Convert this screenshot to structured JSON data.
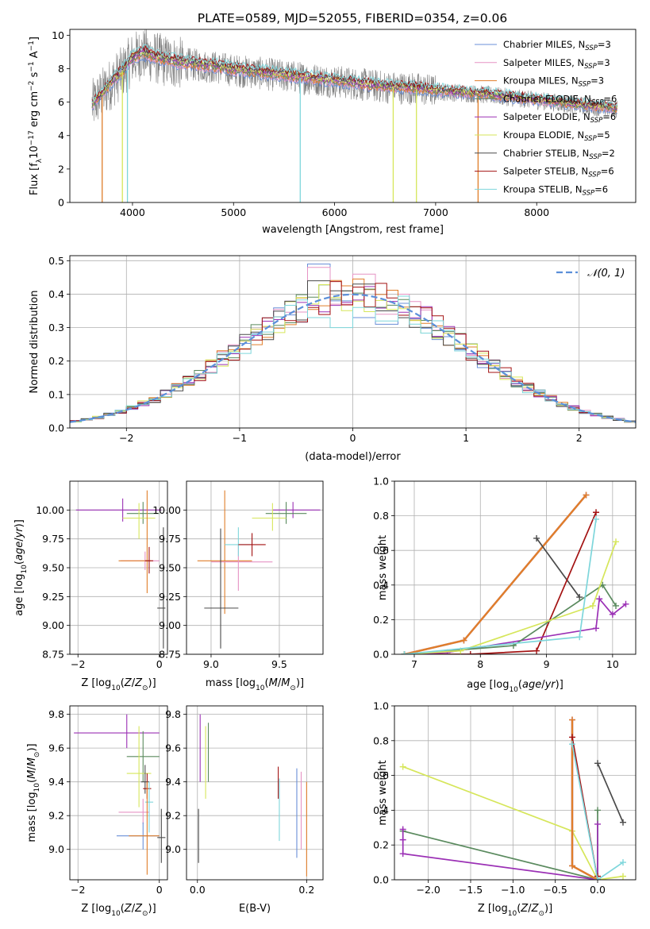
{
  "figure": {
    "title": "PLATE=0589, MJD=52055, FIBERID=0354, z=0.06"
  },
  "colors": {
    "Chabrier MILES": "#6a8fd8",
    "Salpeter MILES": "#e693c4",
    "Kroupa MILES": "#e07e2a",
    "Chabrier ELODIE": "#5a8a5e",
    "Salpeter ELODIE": "#9b30b5",
    "Kroupa ELODIE": "#d6e65a",
    "Chabrier STELIB": "#4a4a4a",
    "Salpeter STELIB": "#a31212",
    "Kroupa STELIB": "#7ed6db",
    "data": "#7f7f7f",
    "normal": "#5b8fd9"
  },
  "chart_data": [
    {
      "id": "spectrum",
      "type": "line",
      "xlabel": "wavelength [Angstrom, rest frame]",
      "ylabel": "Flux [f_λ 10^-17 erg cm^-2 s^-1 A^-1]",
      "xlim": [
        3380,
        8980
      ],
      "ylim": [
        0,
        10.35
      ],
      "xticks": [
        4000,
        5000,
        6000,
        7000,
        8000
      ],
      "yticks": [
        0,
        2,
        4,
        6,
        8,
        10
      ],
      "grid": false,
      "legend_position": "right",
      "data_anchor": {
        "x": [
          3600,
          3700,
          3800,
          3900,
          4000,
          4100,
          4300,
          4500,
          4800,
          5000,
          5300,
          5600,
          5900,
          6200,
          6500,
          6800,
          7100,
          7400,
          7700,
          8000,
          8300,
          8600,
          8800
        ],
        "y": [
          5.8,
          6.5,
          7.2,
          7.8,
          8.6,
          8.9,
          8.5,
          8.3,
          8.1,
          7.9,
          7.7,
          7.5,
          7.3,
          7.1,
          6.9,
          6.8,
          6.6,
          6.5,
          6.3,
          6.1,
          5.9,
          5.7,
          5.6
        ]
      },
      "dips": [
        {
          "series": "Kroupa MILES",
          "x": 3700
        },
        {
          "series": "Kroupa ELODIE",
          "x": 3900
        },
        {
          "series": "Kroupa STELIB",
          "x": 3950
        },
        {
          "series": "Kroupa STELIB",
          "x": 5660
        },
        {
          "series": "Kroupa ELODIE",
          "x": 6580
        },
        {
          "series": "Kroupa ELODIE",
          "x": 6810
        },
        {
          "series": "Kroupa MILES",
          "x": 7420
        }
      ],
      "legend": [
        {
          "name": "Chabrier MILES, N_SSP=3",
          "label": "Chabrier MILES, N",
          "sub": "SSP",
          "tail": "=3",
          "color_key": "Chabrier MILES"
        },
        {
          "name": "Salpeter MILES, N_SSP=3",
          "label": "Salpeter MILES, N",
          "sub": "SSP",
          "tail": "=3",
          "color_key": "Salpeter MILES"
        },
        {
          "name": "Kroupa MILES, N_SSP=3",
          "label": "Kroupa MILES, N",
          "sub": "SSP",
          "tail": "=3",
          "color_key": "Kroupa MILES"
        },
        {
          "name": "Chabrier ELODIE, N_SSP=6",
          "label": "Chabrier ELODIE, N",
          "sub": "SSP",
          "tail": "=6",
          "color_key": "Chabrier ELODIE"
        },
        {
          "name": "Salpeter ELODIE, N_SSP=6",
          "label": "Salpeter ELODIE, N",
          "sub": "SSP",
          "tail": "=6",
          "color_key": "Salpeter ELODIE"
        },
        {
          "name": "Kroupa ELODIE, N_SSP=5",
          "label": "Kroupa ELODIE, N",
          "sub": "SSP",
          "tail": "=5",
          "color_key": "Kroupa ELODIE"
        },
        {
          "name": "Chabrier STELIB, N_SSP=2",
          "label": "Chabrier STELIB, N",
          "sub": "SSP",
          "tail": "=2",
          "color_key": "Chabrier STELIB"
        },
        {
          "name": "Salpeter STELIB, N_SSP=6",
          "label": "Salpeter STELIB, N",
          "sub": "SSP",
          "tail": "=6",
          "color_key": "Salpeter STELIB"
        },
        {
          "name": "Kroupa STELIB, N_SSP=6",
          "label": "Kroupa STELIB, N",
          "sub": "SSP",
          "tail": "=6",
          "color_key": "Kroupa STELIB"
        }
      ]
    },
    {
      "id": "residuals",
      "type": "bar",
      "xlabel": "(data-model)/error",
      "ylabel": "Normed distribution",
      "xlim": [
        -2.5,
        2.5
      ],
      "ylim": [
        0,
        0.515
      ],
      "xticks": [
        -2,
        -1,
        0,
        1,
        2
      ],
      "yticks": [
        0.0,
        0.1,
        0.2,
        0.3,
        0.4,
        0.5
      ],
      "grid": true,
      "legend_position": "top-right",
      "bin_width": 0.1,
      "normal_curve": {
        "name": "N(0,1)",
        "mean": 0,
        "sigma": 1
      },
      "series": [
        {
          "name": "Chabrier MILES",
          "values": [
            0.49,
            0.38,
            0.33,
            0.31
          ]
        },
        {
          "name": "Chabrier STELIB",
          "values": [
            0.44,
            0.41,
            0.43,
            0.35
          ]
        },
        {
          "name": "Salpeter MILES",
          "values": [
            0.48,
            0.37,
            0.46,
            0.34
          ]
        },
        {
          "name": "Kroupa STELIB",
          "values": [
            0.33,
            0.3,
            0.36,
            0.32
          ]
        }
      ]
    },
    {
      "id": "age_vs_Z",
      "type": "scatter",
      "xlabel": "Z [log10(Z/Z⊙)]",
      "ylabel": "age [log10(age/yr)]",
      "xlim": [
        -2.2,
        0.2
      ],
      "ylim": [
        8.75,
        10.25
      ],
      "xticks": [
        -2,
        0
      ],
      "yticks": [
        8.75,
        9.0,
        9.25,
        9.5,
        9.75,
        10.0
      ],
      "grid": true,
      "points": [
        {
          "series": "Salpeter ELODIE",
          "x": -0.9,
          "xmin": -2.05,
          "xmax": 0.05,
          "y": 10.0,
          "ymin": 9.9,
          "ymax": 10.1
        },
        {
          "series": "Chabrier ELODIE",
          "x": -0.4,
          "xmin": -0.8,
          "xmax": 0.0,
          "y": 9.97,
          "ymin": 9.88,
          "ymax": 10.07
        },
        {
          "series": "Kroupa ELODIE",
          "x": -0.5,
          "xmin": -0.9,
          "xmax": -0.1,
          "y": 9.93,
          "ymin": 9.75,
          "ymax": 10.06
        },
        {
          "series": "Salpeter MILES",
          "x": -0.35,
          "xmin": -0.95,
          "xmax": 0.0,
          "y": 9.56,
          "ymin": 9.48,
          "ymax": 9.64
        },
        {
          "series": "Kroupa MILES",
          "x": -0.3,
          "xmin": -1.0,
          "xmax": -0.2,
          "y": 9.56,
          "ymin": 9.28,
          "ymax": 10.17
        },
        {
          "series": "Salpeter STELIB",
          "x": -0.25,
          "xmin": -0.35,
          "xmax": -0.15,
          "y": 9.56,
          "ymin": 9.45,
          "ymax": 9.68
        },
        {
          "series": "Chabrier STELIB",
          "x": 0.1,
          "xmin": -0.05,
          "xmax": 0.15,
          "y": 9.15,
          "ymin": 8.8,
          "ymax": 9.85
        }
      ]
    },
    {
      "id": "age_vs_mass",
      "type": "scatter",
      "xlabel": "mass [log10(M/M⊙)]",
      "ylabel": "",
      "xlim": [
        8.82,
        9.82
      ],
      "ylim": [
        8.75,
        10.25
      ],
      "xticks": [
        9.0,
        9.5
      ],
      "yticks": [
        8.75,
        9.0,
        9.25,
        9.5,
        9.75,
        10.0
      ],
      "grid": true,
      "points": [
        {
          "series": "Salpeter ELODIE",
          "x": 9.6,
          "xmin": 9.45,
          "xmax": 9.8,
          "y": 10.0,
          "ymin": 9.93,
          "ymax": 10.07
        },
        {
          "series": "Chabrier ELODIE",
          "x": 9.55,
          "xmin": 9.4,
          "xmax": 9.7,
          "y": 9.97,
          "ymin": 9.88,
          "ymax": 10.07
        },
        {
          "series": "Kroupa ELODIE",
          "x": 9.45,
          "xmin": 9.3,
          "xmax": 9.55,
          "y": 9.93,
          "ymin": 9.82,
          "ymax": 10.06
        },
        {
          "series": "Kroupa MILES",
          "x": 9.1,
          "xmin": 8.9,
          "xmax": 9.3,
          "y": 9.56,
          "ymin": 9.1,
          "ymax": 10.17
        },
        {
          "series": "Salpeter MILES",
          "x": 9.2,
          "xmin": 9.0,
          "xmax": 9.45,
          "y": 9.55,
          "ymin": 9.3,
          "ymax": 9.7
        },
        {
          "series": "Kroupa STELIB",
          "x": 9.2,
          "xmin": 9.1,
          "xmax": 9.3,
          "y": 9.7,
          "ymin": 9.6,
          "ymax": 9.85
        },
        {
          "series": "Salpeter STELIB",
          "x": 9.3,
          "xmin": 9.2,
          "xmax": 9.4,
          "y": 9.7,
          "ymin": 9.6,
          "ymax": 9.8
        },
        {
          "series": "Chabrier STELIB",
          "x": 9.07,
          "xmin": 8.95,
          "xmax": 9.2,
          "y": 9.15,
          "ymin": 8.8,
          "ymax": 9.84
        }
      ]
    },
    {
      "id": "weight_vs_age",
      "type": "line",
      "xlabel": "age [log10(age/yr)]",
      "ylabel": "mass weight",
      "xlim": [
        6.7,
        10.35
      ],
      "ylim": [
        0,
        1.0
      ],
      "xticks": [
        7,
        8,
        9,
        10
      ],
      "yticks": [
        0.0,
        0.2,
        0.4,
        0.6,
        0.8,
        1.0
      ],
      "grid": true,
      "series": [
        {
          "name": "Chabrier MILES",
          "x": [
            6.85,
            7.75,
            9.6
          ],
          "y": [
            0.0,
            0.08,
            0.92
          ]
        },
        {
          "name": "Salpeter MILES",
          "x": [
            6.85,
            7.75,
            9.6
          ],
          "y": [
            0.0,
            0.08,
            0.92
          ]
        },
        {
          "name": "Kroupa MILES",
          "x": [
            6.85,
            7.75,
            9.6
          ],
          "y": [
            0.0,
            0.08,
            0.92
          ]
        },
        {
          "name": "Chabrier STELIB",
          "x": [
            8.85,
            9.5
          ],
          "y": [
            0.67,
            0.33
          ]
        },
        {
          "name": "Salpeter STELIB",
          "x": [
            6.85,
            7.85,
            8.85,
            9.75
          ],
          "y": [
            0.0,
            0.0,
            0.02,
            0.82
          ]
        },
        {
          "name": "Salpeter ELODIE",
          "x": [
            6.85,
            7.5,
            9.75,
            9.8,
            10.0,
            10.2
          ],
          "y": [
            0.0,
            0.01,
            0.15,
            0.32,
            0.23,
            0.29
          ]
        },
        {
          "name": "Chabrier ELODIE",
          "x": [
            6.85,
            8.5,
            9.85,
            10.05
          ],
          "y": [
            0.0,
            0.05,
            0.4,
            0.28
          ]
        },
        {
          "name": "Kroupa ELODIE",
          "x": [
            6.85,
            7.7,
            9.7,
            10.05
          ],
          "y": [
            0.0,
            0.02,
            0.28,
            0.65
          ]
        },
        {
          "name": "Kroupa STELIB",
          "x": [
            6.85,
            9.5,
            9.75
          ],
          "y": [
            0.0,
            0.1,
            0.78
          ]
        }
      ]
    },
    {
      "id": "mass_vs_Z",
      "type": "scatter",
      "xlabel": "Z [log10(Z/Z⊙)]",
      "ylabel": "mass [log10(M/M⊙)]",
      "xlim": [
        -2.2,
        0.2
      ],
      "ylim": [
        8.82,
        9.85
      ],
      "xticks": [
        -2,
        0
      ],
      "yticks": [
        9.0,
        9.2,
        9.4,
        9.6,
        9.8
      ],
      "grid": true,
      "points": [
        {
          "series": "Salpeter ELODIE",
          "x": -0.8,
          "xmin": -2.1,
          "xmax": 0.0,
          "y": 9.69,
          "ymin": 9.6,
          "ymax": 9.8
        },
        {
          "series": "Chabrier ELODIE",
          "x": -0.4,
          "xmin": -0.8,
          "xmax": 0.0,
          "y": 9.55,
          "ymin": 9.4,
          "ymax": 9.7
        },
        {
          "series": "Kroupa ELODIE",
          "x": -0.5,
          "xmin": -0.8,
          "xmax": -0.2,
          "y": 9.45,
          "ymin": 9.25,
          "ymax": 9.73
        },
        {
          "series": "Chabrier STELIB",
          "x": -0.35,
          "xmin": -0.45,
          "xmax": -0.25,
          "y": 9.4,
          "ymin": 9.33,
          "ymax": 9.5
        },
        {
          "series": "Salpeter STELIB",
          "x": -0.3,
          "xmin": -0.4,
          "xmax": -0.2,
          "y": 9.36,
          "ymin": 9.3,
          "ymax": 9.45
        },
        {
          "series": "Kroupa STELIB",
          "x": -0.25,
          "xmin": -0.35,
          "xmax": -0.15,
          "y": 9.28,
          "ymin": 9.1,
          "ymax": 9.4
        },
        {
          "series": "Salpeter MILES",
          "x": -0.4,
          "xmin": -1.0,
          "xmax": -0.25,
          "y": 9.22,
          "ymin": 9.15,
          "ymax": 9.3
        },
        {
          "series": "Chabrier MILES",
          "x": -0.4,
          "xmin": -1.05,
          "xmax": 0.0,
          "y": 9.08,
          "ymin": 9.0,
          "ymax": 9.16
        },
        {
          "series": "Kroupa MILES",
          "x": -0.3,
          "xmin": -0.75,
          "xmax": 0.0,
          "y": 9.08,
          "ymin": 8.85,
          "ymax": 9.4
        },
        {
          "series": "Chabrier STELIB",
          "x": 0.05,
          "xmin": -0.05,
          "xmax": 0.15,
          "y": 9.07,
          "ymin": 8.92,
          "ymax": 9.24
        }
      ]
    },
    {
      "id": "mass_vs_EBV",
      "type": "scatter",
      "xlabel": "E(B-V)",
      "ylabel": "",
      "xlim": [
        -0.02,
        0.23
      ],
      "ylim": [
        8.82,
        9.85
      ],
      "xticks": [
        0.0,
        0.2
      ],
      "yticks": [
        9.0,
        9.2,
        9.4,
        9.6,
        9.8
      ],
      "grid": true,
      "points": [
        {
          "series": "Salpeter ELODIE",
          "x": 0.005,
          "y": 9.6,
          "ymin": 9.4,
          "ymax": 9.8
        },
        {
          "series": "Kroupa ELODIE",
          "x": 0.015,
          "y": 9.55,
          "ymin": 9.3,
          "ymax": 9.73
        },
        {
          "series": "Chabrier ELODIE",
          "x": 0.02,
          "y": 9.55,
          "ymin": 9.4,
          "ymax": 9.75
        },
        {
          "series": "Chabrier STELIB",
          "x": 0.002,
          "y": 9.08,
          "ymin": 8.92,
          "ymax": 9.24
        },
        {
          "series": "Salpeter STELIB",
          "x": 0.148,
          "y": 9.4,
          "ymin": 9.3,
          "ymax": 9.49
        },
        {
          "series": "Kroupa STELIB",
          "x": 0.15,
          "y": 9.2,
          "ymin": 9.05,
          "ymax": 9.42
        },
        {
          "series": "Chabrier MILES",
          "x": 0.182,
          "y": 9.2,
          "ymin": 8.95,
          "ymax": 9.48
        },
        {
          "series": "Salpeter MILES",
          "x": 0.19,
          "y": 9.2,
          "ymin": 9.0,
          "ymax": 9.46
        },
        {
          "series": "Kroupa MILES",
          "x": 0.2,
          "y": 9.15,
          "ymin": 8.84,
          "ymax": 9.4
        }
      ]
    },
    {
      "id": "weight_vs_Z",
      "type": "line",
      "xlabel": "Z [log10(Z/Z⊙)]",
      "ylabel": "mass weight",
      "xlim": [
        -2.4,
        0.45
      ],
      "ylim": [
        0,
        1.0
      ],
      "xticks": [
        -2.0,
        -1.5,
        -1.0,
        -0.5,
        0.0
      ],
      "yticks": [
        0.0,
        0.2,
        0.4,
        0.6,
        0.8,
        1.0
      ],
      "grid": true,
      "series": [
        {
          "name": "Kroupa ELODIE",
          "x": [
            -2.3,
            -0.3,
            0.0,
            0.3
          ],
          "y": [
            0.65,
            0.28,
            0.0,
            0.02
          ]
        },
        {
          "name": "Chabrier ELODIE",
          "x": [
            -2.3,
            0.0,
            0.0
          ],
          "y": [
            0.28,
            0.0,
            0.4
          ]
        },
        {
          "name": "Salpeter ELODIE",
          "x": [
            -2.3,
            -2.3,
            -2.3,
            0.0,
            0.0
          ],
          "y": [
            0.29,
            0.23,
            0.15,
            0.0,
            0.32
          ]
        },
        {
          "name": "Chabrier MILES",
          "x": [
            -0.3,
            -0.3,
            0.0
          ],
          "y": [
            0.92,
            0.08,
            0.0
          ]
        },
        {
          "name": "Salpeter MILES",
          "x": [
            -0.3,
            -0.3,
            0.0
          ],
          "y": [
            0.92,
            0.08,
            0.0
          ]
        },
        {
          "name": "Kroupa MILES",
          "x": [
            -0.3,
            -0.3,
            0.0
          ],
          "y": [
            0.92,
            0.08,
            0.0
          ]
        },
        {
          "name": "Salpeter STELIB",
          "x": [
            -0.3,
            0.0,
            0.0
          ],
          "y": [
            0.82,
            0.0,
            0.02
          ]
        },
        {
          "name": "Kroupa STELIB",
          "x": [
            -0.3,
            0.0,
            0.3
          ],
          "y": [
            0.78,
            0.0,
            0.1
          ]
        },
        {
          "name": "Chabrier STELIB",
          "x": [
            0.0,
            0.3
          ],
          "y": [
            0.67,
            0.33
          ]
        }
      ]
    }
  ]
}
